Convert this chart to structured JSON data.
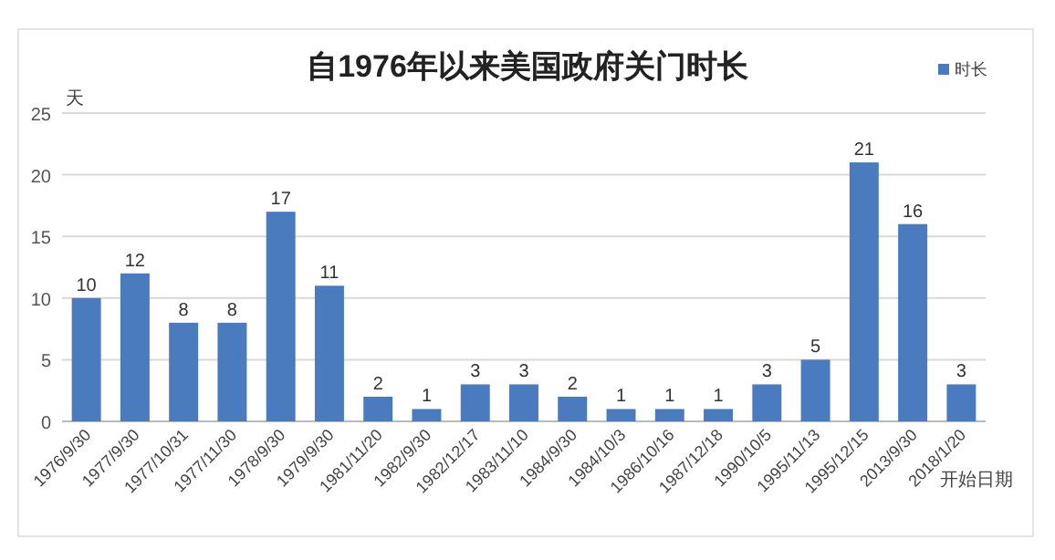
{
  "chart_data": {
    "type": "bar",
    "title": "自1976年以来美国政府关门时长",
    "ylabel": "天",
    "xlabel": "开始日期",
    "categories": [
      "1976/9/30",
      "1977/9/30",
      "1977/10/31",
      "1977/11/30",
      "1978/9/30",
      "1979/9/30",
      "1981/11/20",
      "1982/9/30",
      "1982/12/17",
      "1983/11/10",
      "1984/9/30",
      "1984/10/3",
      "1986/10/16",
      "1987/12/18",
      "1990/10/5",
      "1995/11/13",
      "1995/12/15",
      "2013/9/30",
      "2018/1/20"
    ],
    "series": [
      {
        "name": "时长",
        "color": "#4a7bbf",
        "values": [
          10,
          12,
          8,
          8,
          17,
          11,
          2,
          1,
          3,
          3,
          2,
          1,
          1,
          1,
          3,
          5,
          21,
          16,
          3
        ]
      }
    ],
    "ylim": [
      0,
      25
    ],
    "yticks": [
      0,
      5,
      10,
      15,
      20,
      25
    ],
    "grid": "y",
    "legend": "top right",
    "data_labels": true
  }
}
